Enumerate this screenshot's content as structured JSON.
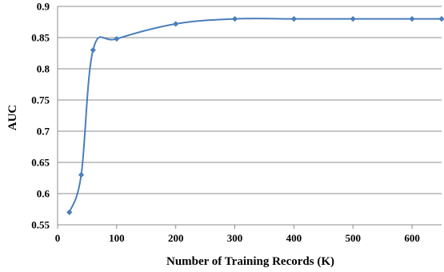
{
  "chart_data": {
    "type": "line",
    "xlabel": "Number of Training Records (K)",
    "ylabel": "AUC",
    "xlim": [
      0,
      650
    ],
    "ylim": [
      0.55,
      0.9
    ],
    "x_ticks": [
      0,
      100,
      200,
      300,
      400,
      500,
      600
    ],
    "y_ticks": [
      0.55,
      0.6,
      0.65,
      0.7,
      0.75,
      0.8,
      0.85,
      0.9
    ],
    "grid": "horizontal",
    "legend": "none",
    "series": [
      {
        "color": "#4a7ebb",
        "marker": "diamond",
        "smooth": true,
        "x": [
          20,
          40,
          60,
          100,
          200,
          300,
          400,
          500,
          600,
          650
        ],
        "y": [
          0.57,
          0.63,
          0.83,
          0.848,
          0.872,
          0.88,
          0.88,
          0.88,
          0.88,
          0.88
        ]
      }
    ]
  }
}
